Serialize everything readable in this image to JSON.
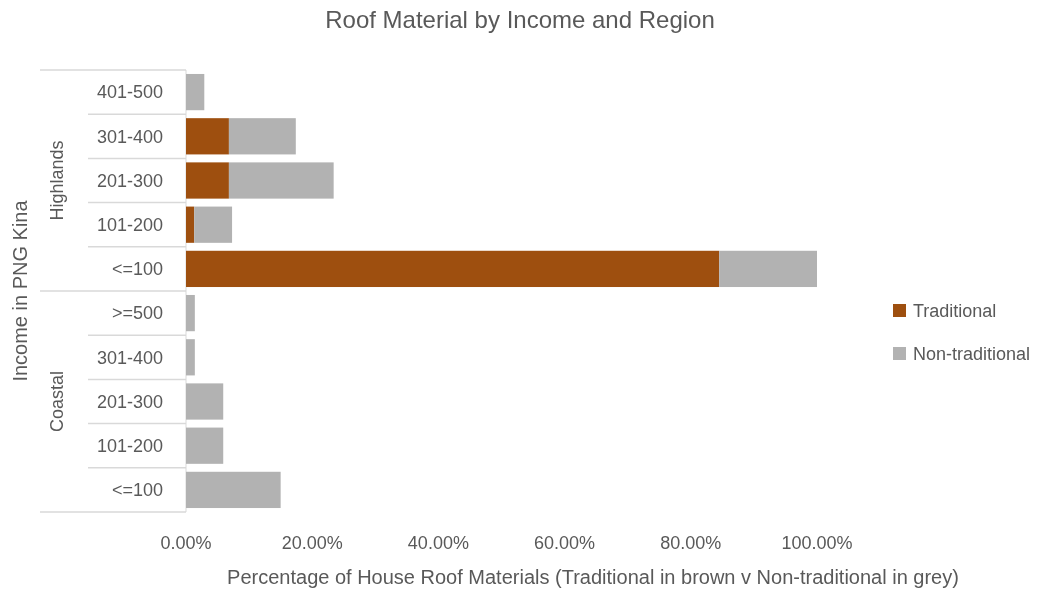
{
  "chart_data": {
    "type": "bar",
    "orientation": "horizontal",
    "stacked": true,
    "title": "Roof Material by Income and Region",
    "xlabel": "Percentage of House Roof Materials (Traditional in brown v Non-traditional in grey)",
    "ylabel": "Income in PNG Kina",
    "categories": [
      "401-500",
      "301-400",
      "201-300",
      "101-200",
      "<=100",
      ">=500",
      "301-400",
      "201-300",
      "101-200",
      "<=100"
    ],
    "series": [
      {
        "name": "Traditional",
        "color": "#9e4f0f",
        "values": [
          0,
          6.8,
          6.8,
          1.3,
          84.5,
          0,
          0,
          0,
          0,
          0
        ]
      },
      {
        "name": "Non-traditional",
        "color": "#b2b2b2",
        "values": [
          2.9,
          10.6,
          16.6,
          6.0,
          15.5,
          1.4,
          1.4,
          5.9,
          5.9,
          15.0
        ]
      }
    ],
    "annotations": [
      "Highlands",
      "Coastal"
    ],
    "xlim": [
      0,
      100
    ],
    "xticks": [
      {
        "value": 0,
        "label": "0.00%"
      },
      {
        "value": 20,
        "label": "20.00%"
      },
      {
        "value": 40,
        "label": "40.00%"
      },
      {
        "value": 60,
        "label": "60.00%"
      },
      {
        "value": 80,
        "label": "80.00%"
      },
      {
        "value": 100,
        "label": "100.00%"
      }
    ],
    "grid": false,
    "legend": "right"
  }
}
